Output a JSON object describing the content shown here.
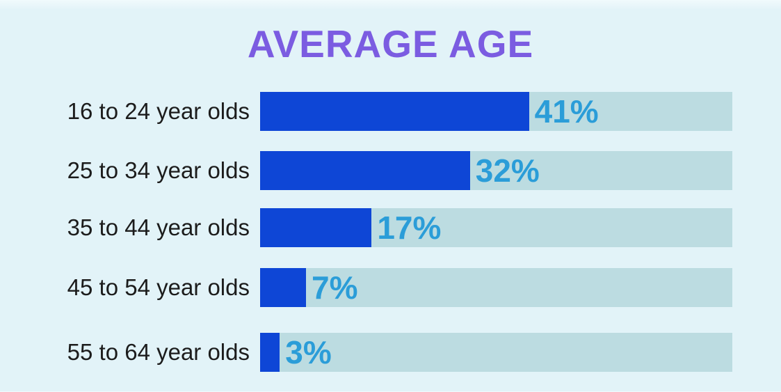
{
  "page": {
    "title": "AVERAGE AGE"
  },
  "chart_data": {
    "type": "bar",
    "orientation": "horizontal",
    "title": "AVERAGE AGE",
    "categories": [
      "16 to 24 year olds",
      "25 to 34 year olds",
      "35 to 44 year olds",
      "45 to 54 year olds",
      "55 to 64 year olds"
    ],
    "values": [
      41,
      32,
      17,
      7,
      3
    ],
    "value_suffix": "%",
    "value_labels": [
      "41%",
      "32%",
      "17%",
      "7%",
      "3%"
    ],
    "xlim": [
      0,
      72
    ],
    "grid": false,
    "legend": false,
    "colors": {
      "background": "#e2f3f8",
      "title": "#7b5ce1",
      "bar": "#0e46d6",
      "track": "#bcdce1",
      "value_label": "#2b9dd8",
      "category_label": "#1c1c1c"
    }
  }
}
